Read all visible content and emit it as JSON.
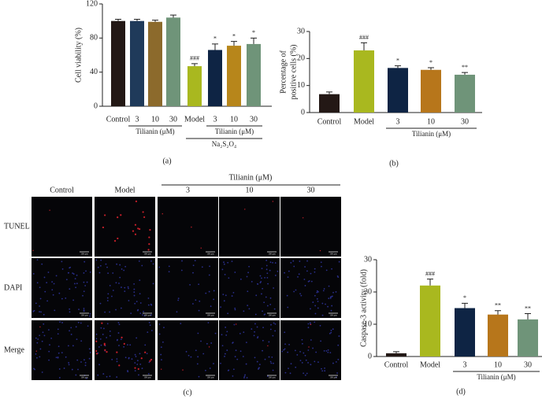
{
  "chart_data": [
    {
      "type": "bar",
      "panel_label": "(a)",
      "ylabel": "Cell viability (%)",
      "categories": [
        "Control",
        "3",
        "10",
        "30",
        "Model",
        "3",
        "10",
        "30"
      ],
      "values": [
        100,
        100,
        99,
        104,
        47,
        66,
        71,
        73
      ],
      "errors": [
        2,
        2,
        2,
        3,
        3,
        7,
        5,
        7
      ],
      "colors": [
        "#231815",
        "#1f3a5a",
        "#8c6a2c",
        "#6f9479",
        "#a9b81f",
        "#0e2444",
        "#b7861b",
        "#6f9479"
      ],
      "annotations": [
        null,
        null,
        null,
        null,
        "###",
        "*",
        "*",
        "*"
      ],
      "group_labels": [
        "Tilianin (μM)",
        "Tilianin (μM)",
        "Na₂S₂O₄"
      ],
      "ylim": [
        0,
        120
      ],
      "yticks": [
        0,
        40,
        80,
        120
      ]
    },
    {
      "type": "bar",
      "panel_label": "(b)",
      "ylabel": [
        "Percentage of",
        "positive cells (%)"
      ],
      "categories": [
        "Control",
        "Model",
        "3",
        "10",
        "30"
      ],
      "values": [
        6.8,
        23,
        16.5,
        15.8,
        14
      ],
      "errors": [
        0.8,
        2.8,
        0.8,
        0.8,
        0.8
      ],
      "colors": [
        "#231815",
        "#a9b81f",
        "#0e2444",
        "#b7761b",
        "#6f9479"
      ],
      "annotations": [
        null,
        "###",
        "*",
        "*",
        "**"
      ],
      "group_labels": [
        "Tilianin (μM)"
      ],
      "ylim": [
        0,
        30
      ],
      "yticks": [
        0,
        10,
        20,
        30
      ]
    },
    {
      "type": "bar",
      "panel_label": "(d)",
      "ylabel": "Caspase-3 activity (fold)",
      "categories": [
        "Control",
        "Model",
        "3",
        "10",
        "30"
      ],
      "values": [
        1,
        22,
        15,
        13,
        11.5
      ],
      "errors": [
        0.5,
        2,
        1.5,
        1.2,
        1.8
      ],
      "colors": [
        "#231815",
        "#a9b81f",
        "#0e2444",
        "#b7761b",
        "#6f9479"
      ],
      "annotations": [
        null,
        "###",
        "*",
        "**",
        "**"
      ],
      "group_labels": [
        "Tilianin (μM)"
      ],
      "ylim": [
        0,
        30
      ],
      "yticks": [
        0,
        10,
        20,
        30
      ]
    }
  ],
  "image_panel": {
    "panel_label": "(c)",
    "group_label": "Tilianin (μM)",
    "column_labels": [
      "Control",
      "Model",
      "3",
      "10",
      "30"
    ],
    "row_labels": [
      "TUNEL",
      "DAPI",
      "Merge"
    ],
    "scale_bar": "100 μm"
  }
}
